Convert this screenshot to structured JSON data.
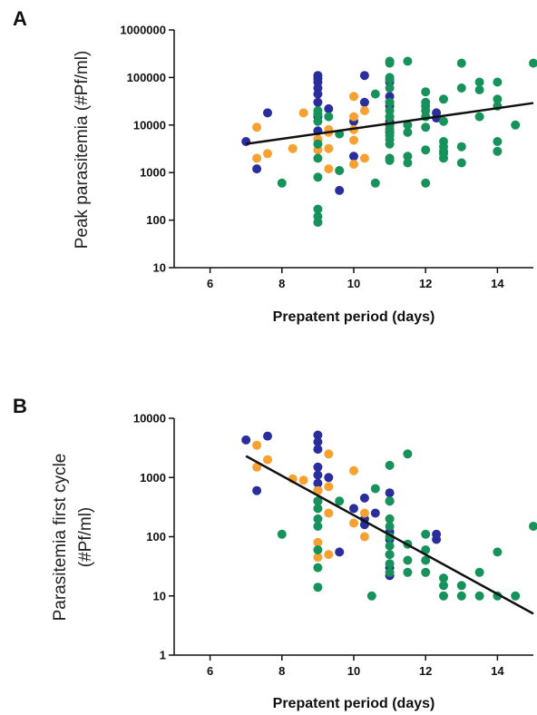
{
  "colors": {
    "blue": "#2a2e9c",
    "orange": "#f7a133",
    "green": "#16925a",
    "axis": "#111111",
    "fit": "#111111"
  },
  "chart_data": [
    {
      "panel": "A",
      "type": "scatter",
      "xlabel": "Prepatent period (days)",
      "ylabel": "Peak parasitemia (#Pf/ml)",
      "xlim": [
        5,
        15
      ],
      "ylim": [
        10,
        1000000
      ],
      "yscale": "log",
      "xticks": [
        6,
        8,
        10,
        12,
        14
      ],
      "yticks": [
        10,
        100,
        1000,
        10000,
        100000,
        1000000
      ],
      "ytick_labels": [
        "10",
        "100",
        "1000",
        "10000",
        "100000",
        "1000000"
      ],
      "grid": false,
      "fit_line": {
        "x": [
          7,
          15
        ],
        "y": [
          4000,
          29000
        ]
      },
      "series": [
        {
          "color": "blue",
          "points": [
            [
              7,
              4500
            ],
            [
              7.3,
              1200
            ],
            [
              7.6,
              18000
            ],
            [
              9,
              110000
            ],
            [
              9,
              95000
            ],
            [
              9,
              80000
            ],
            [
              9,
              60000
            ],
            [
              9,
              45000
            ],
            [
              9,
              30000
            ],
            [
              9,
              15000
            ],
            [
              9,
              7500
            ],
            [
              9,
              5000
            ],
            [
              9.3,
              22000
            ],
            [
              9.6,
              420
            ],
            [
              10,
              12000
            ],
            [
              10,
              2200
            ],
            [
              10.3,
              110000
            ],
            [
              10.3,
              30000
            ],
            [
              11,
              80000
            ],
            [
              11,
              40000
            ],
            [
              11,
              30000
            ],
            [
              11,
              25000
            ],
            [
              11,
              12000
            ],
            [
              11,
              10000
            ],
            [
              11,
              7000
            ],
            [
              12.3,
              18000
            ],
            [
              12.3,
              14000
            ]
          ]
        },
        {
          "color": "orange",
          "points": [
            [
              7.3,
              9000
            ],
            [
              7.3,
              2000
            ],
            [
              7.6,
              2500
            ],
            [
              8.3,
              3200
            ],
            [
              8.6,
              18000
            ],
            [
              9,
              5000
            ],
            [
              9,
              3000
            ],
            [
              9.3,
              8000
            ],
            [
              9.3,
              7000
            ],
            [
              9.3,
              3200
            ],
            [
              9.3,
              1200
            ],
            [
              9.6,
              1100
            ],
            [
              10,
              40000
            ],
            [
              10,
              15000
            ],
            [
              10,
              8000
            ],
            [
              10,
              4800
            ],
            [
              10,
              1500
            ],
            [
              10.3,
              2000
            ],
            [
              10.3,
              20000
            ],
            [
              11,
              8000
            ],
            [
              11,
              9000
            ],
            [
              11,
              15000
            ]
          ]
        },
        {
          "color": "green",
          "points": [
            [
              8,
              600
            ],
            [
              9,
              20000
            ],
            [
              9,
              17000
            ],
            [
              9,
              12000
            ],
            [
              9,
              4000
            ],
            [
              9,
              2000
            ],
            [
              9,
              800
            ],
            [
              9,
              170
            ],
            [
              9,
              120
            ],
            [
              9,
              90
            ],
            [
              9.3,
              15000
            ],
            [
              9.6,
              6500
            ],
            [
              9.6,
              1100
            ],
            [
              10.6,
              600
            ],
            [
              10.6,
              45000
            ],
            [
              11,
              220000
            ],
            [
              11,
              200000
            ],
            [
              11,
              100000
            ],
            [
              11,
              90000
            ],
            [
              11,
              60000
            ],
            [
              11,
              30000
            ],
            [
              11,
              20000
            ],
            [
              11,
              15000
            ],
            [
              11,
              10000
            ],
            [
              11,
              8000
            ],
            [
              11,
              6000
            ],
            [
              11,
              5000
            ],
            [
              11,
              4000
            ],
            [
              11,
              2000
            ],
            [
              11,
              1800
            ],
            [
              11.5,
              220000
            ],
            [
              11.5,
              10000
            ],
            [
              11.5,
              7000
            ],
            [
              11.5,
              2200
            ],
            [
              11.5,
              1600
            ],
            [
              12,
              50000
            ],
            [
              12,
              30000
            ],
            [
              12,
              25000
            ],
            [
              12,
              20000
            ],
            [
              12,
              15000
            ],
            [
              12,
              9000
            ],
            [
              12,
              3000
            ],
            [
              12,
              600
            ],
            [
              12.5,
              35000
            ],
            [
              12.5,
              12000
            ],
            [
              12.5,
              4500
            ],
            [
              12.5,
              3500
            ],
            [
              12.5,
              2800
            ],
            [
              12.5,
              2500
            ],
            [
              12.5,
              2000
            ],
            [
              13,
              60000
            ],
            [
              13,
              200000
            ],
            [
              13,
              3500
            ],
            [
              13,
              1600
            ],
            [
              13.5,
              80000
            ],
            [
              13.5,
              55000
            ],
            [
              13.5,
              15000
            ],
            [
              14,
              80000
            ],
            [
              14,
              35000
            ],
            [
              14,
              25000
            ],
            [
              14,
              4500
            ],
            [
              14,
              2800
            ],
            [
              14.5,
              10000
            ],
            [
              15,
              200000
            ]
          ]
        }
      ]
    },
    {
      "panel": "B",
      "type": "scatter",
      "xlabel": "Prepatent period (days)",
      "ylabel": [
        "Parasitemia first cycle",
        "(#Pf/ml)"
      ],
      "xlim": [
        5,
        15
      ],
      "ylim": [
        1,
        10000
      ],
      "yscale": "log",
      "xticks": [
        6,
        8,
        10,
        12,
        14
      ],
      "yticks": [
        1,
        10,
        100,
        1000,
        10000
      ],
      "ytick_labels": [
        "1",
        "10",
        "100",
        "1000",
        "10000"
      ],
      "grid": false,
      "fit_line": {
        "x": [
          7,
          15
        ],
        "y": [
          2300,
          5
        ]
      },
      "series": [
        {
          "color": "blue",
          "points": [
            [
              7,
              4300
            ],
            [
              7.3,
              600
            ],
            [
              7.6,
              5000
            ],
            [
              9,
              5200
            ],
            [
              9,
              4000
            ],
            [
              9,
              3000
            ],
            [
              9,
              1500
            ],
            [
              9,
              1100
            ],
            [
              9,
              800
            ],
            [
              9,
              600
            ],
            [
              9,
              400
            ],
            [
              9.3,
              1000
            ],
            [
              9.6,
              55
            ],
            [
              10,
              300
            ],
            [
              10.3,
              200
            ],
            [
              10.3,
              160
            ],
            [
              10.3,
              450
            ],
            [
              10.6,
              250
            ],
            [
              11,
              550
            ],
            [
              11,
              400
            ],
            [
              11,
              120
            ],
            [
              11,
              90
            ],
            [
              11,
              50
            ],
            [
              11,
              30
            ],
            [
              11,
              22
            ],
            [
              12.3,
              110
            ],
            [
              12.3,
              90
            ]
          ]
        },
        {
          "color": "orange",
          "points": [
            [
              7.3,
              1500
            ],
            [
              7.3,
              3500
            ],
            [
              7.6,
              2000
            ],
            [
              8.3,
              950
            ],
            [
              8.6,
              900
            ],
            [
              9,
              600
            ],
            [
              9,
              300
            ],
            [
              9,
              80
            ],
            [
              9,
              45
            ],
            [
              9.3,
              2500
            ],
            [
              9.3,
              700
            ],
            [
              9.3,
              50
            ],
            [
              9.3,
              250
            ],
            [
              10,
              1300
            ],
            [
              10,
              170
            ],
            [
              10.3,
              100
            ],
            [
              10.3,
              250
            ],
            [
              11,
              200
            ]
          ]
        },
        {
          "color": "green",
          "points": [
            [
              8,
              110
            ],
            [
              9,
              400
            ],
            [
              9,
              300
            ],
            [
              9,
              200
            ],
            [
              9,
              150
            ],
            [
              9,
              60
            ],
            [
              9,
              30
            ],
            [
              9,
              14
            ],
            [
              9.6,
              400
            ],
            [
              10.5,
              10
            ],
            [
              10.6,
              650
            ],
            [
              11,
              1600
            ],
            [
              11,
              400
            ],
            [
              11,
              200
            ],
            [
              11,
              150
            ],
            [
              11,
              100
            ],
            [
              11,
              70
            ],
            [
              11,
              50
            ],
            [
              11,
              35
            ],
            [
              11,
              25
            ],
            [
              11.5,
              2500
            ],
            [
              11.5,
              75
            ],
            [
              11.5,
              40
            ],
            [
              11.5,
              25
            ],
            [
              12,
              110
            ],
            [
              12,
              60
            ],
            [
              12,
              40
            ],
            [
              12,
              25
            ],
            [
              12.5,
              20
            ],
            [
              12.5,
              15
            ],
            [
              12.5,
              10
            ],
            [
              13,
              15
            ],
            [
              13,
              10
            ],
            [
              13.5,
              25
            ],
            [
              13.5,
              10
            ],
            [
              14,
              55
            ],
            [
              14,
              10
            ],
            [
              14.5,
              10
            ],
            [
              15,
              150
            ]
          ]
        }
      ]
    }
  ]
}
